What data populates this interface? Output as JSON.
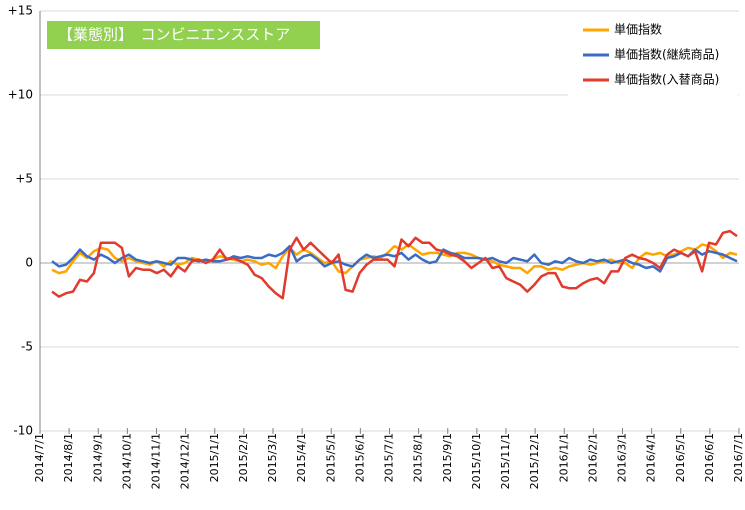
{
  "chart_data": {
    "type": "line",
    "title": "【業態別】　コンビニエンスストア",
    "title_bg": "#92d050",
    "yticks": [
      "+15",
      "+10",
      "+5",
      "0",
      "-5",
      "-10"
    ],
    "ytick_values": [
      15,
      10,
      5,
      0,
      -5,
      -10
    ],
    "ylim": [
      -10,
      15
    ],
    "grid": true,
    "legend_position": "top-right",
    "x_labels": [
      "2014/7/1",
      "2014/8/1",
      "2014/9/1",
      "2014/10/1",
      "2014/11/1",
      "2014/12/1",
      "2015/1/1",
      "2015/2/1",
      "2015/3/1",
      "2015/4/1",
      "2015/5/1",
      "2015/6/1",
      "2015/7/1",
      "2015/8/1",
      "2015/9/1",
      "2015/10/1",
      "2015/11/1",
      "2015/12/1",
      "2016/1/1",
      "2016/2/1",
      "2016/3/1",
      "2016/4/1",
      "2016/5/1",
      "2016/6/1",
      "2016/7/1"
    ],
    "series": [
      {
        "name": "単価指数",
        "color": "#ffa500",
        "values": [
          -0.4,
          -0.6,
          -0.5,
          0.1,
          0.6,
          0.3,
          0.7,
          0.9,
          0.8,
          0.3,
          0.1,
          0.3,
          0.1,
          0.0,
          -0.1,
          0.1,
          -0.2,
          0.1,
          -0.1,
          0.0,
          0.3,
          0.2,
          0.1,
          0.2,
          0.4,
          0.3,
          0.2,
          0.1,
          0.2,
          0.1,
          -0.1,
          0.0,
          -0.3,
          0.4,
          0.9,
          0.5,
          0.8,
          0.6,
          0.3,
          0.0,
          0.1,
          -0.5,
          -0.6,
          -0.2,
          0.2,
          0.3,
          0.4,
          0.3,
          0.6,
          1.0,
          0.8,
          1.1,
          0.8,
          0.5,
          0.6,
          0.6,
          0.5,
          0.4,
          0.6,
          0.6,
          0.5,
          0.3,
          0.2,
          0.1,
          -0.1,
          -0.2,
          -0.3,
          -0.3,
          -0.6,
          -0.2,
          -0.2,
          -0.4,
          -0.3,
          -0.4,
          -0.2,
          -0.1,
          0.0,
          -0.1,
          0.0,
          0.1,
          0.2,
          0.0,
          0.0,
          -0.3,
          0.3,
          0.6,
          0.5,
          0.6,
          0.4,
          0.5,
          0.7,
          0.9,
          0.8,
          1.1,
          1.0,
          0.7,
          0.3,
          0.6,
          0.5
        ]
      },
      {
        "name": "単価指数(継続商品)",
        "color": "#3b6cc4",
        "values": [
          0.1,
          -0.2,
          -0.1,
          0.3,
          0.8,
          0.4,
          0.2,
          0.5,
          0.3,
          0.0,
          0.3,
          0.5,
          0.2,
          0.1,
          0.0,
          0.1,
          0.0,
          -0.1,
          0.3,
          0.3,
          0.2,
          0.1,
          0.2,
          0.1,
          0.1,
          0.2,
          0.4,
          0.3,
          0.4,
          0.3,
          0.3,
          0.5,
          0.4,
          0.6,
          1.0,
          0.1,
          0.4,
          0.5,
          0.2,
          -0.2,
          0.0,
          0.1,
          -0.1,
          -0.2,
          0.2,
          0.5,
          0.3,
          0.4,
          0.5,
          0.4,
          0.6,
          0.2,
          0.5,
          0.2,
          0.0,
          0.1,
          0.8,
          0.6,
          0.5,
          0.3,
          0.3,
          0.3,
          0.2,
          0.3,
          0.1,
          0.0,
          0.3,
          0.2,
          0.1,
          0.5,
          0.0,
          -0.1,
          0.1,
          0.0,
          0.3,
          0.1,
          0.0,
          0.2,
          0.1,
          0.2,
          0.0,
          0.1,
          0.2,
          0.0,
          -0.1,
          -0.3,
          -0.2,
          -0.5,
          0.3,
          0.4,
          0.6,
          0.4,
          0.8,
          0.5,
          0.7,
          0.6,
          0.5,
          0.3,
          0.1
        ]
      },
      {
        "name": "単価指数(入替商品)",
        "color": "#e03b2e",
        "values": [
          -1.7,
          -2.0,
          -1.8,
          -1.7,
          -1.0,
          -1.1,
          -0.6,
          1.2,
          1.2,
          1.2,
          0.9,
          -0.8,
          -0.3,
          -0.4,
          -0.4,
          -0.6,
          -0.4,
          -0.8,
          -0.2,
          -0.5,
          0.1,
          0.2,
          0.0,
          0.2,
          0.8,
          0.2,
          0.3,
          0.1,
          -0.1,
          -0.7,
          -0.9,
          -1.4,
          -1.8,
          -2.1,
          0.8,
          1.5,
          0.8,
          1.2,
          0.8,
          0.4,
          0.0,
          0.5,
          -1.6,
          -1.7,
          -0.6,
          -0.1,
          0.2,
          0.2,
          0.2,
          -0.2,
          1.4,
          1.0,
          1.5,
          1.2,
          1.2,
          0.8,
          0.7,
          0.5,
          0.4,
          0.1,
          -0.3,
          0.0,
          0.3,
          -0.3,
          -0.2,
          -0.9,
          -1.1,
          -1.3,
          -1.7,
          -1.3,
          -0.8,
          -0.6,
          -0.6,
          -1.4,
          -1.5,
          -1.5,
          -1.2,
          -1.0,
          -0.9,
          -1.2,
          -0.5,
          -0.5,
          0.3,
          0.5,
          0.3,
          0.2,
          0.0,
          -0.3,
          0.5,
          0.8,
          0.6,
          0.4,
          0.7,
          -0.5,
          1.2,
          1.1,
          1.8,
          1.9,
          1.6
        ]
      }
    ]
  }
}
